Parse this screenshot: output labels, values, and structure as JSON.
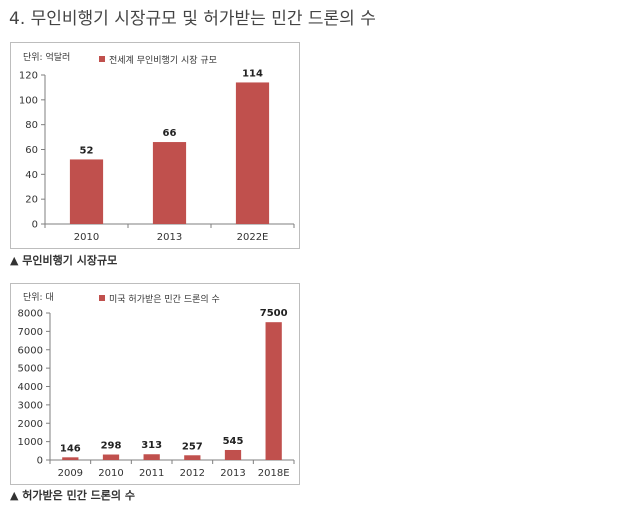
{
  "heading": "4.  무인비행기 시장규모 및 허가받는 민간 드론의 수",
  "colors": {
    "bar": "#c0504d",
    "axis": "#7f7f7f"
  },
  "chart_data": [
    {
      "type": "bar",
      "unit_label": "단위: 억달러",
      "legend": "전세계 무인비행기 시장 규모",
      "categories": [
        "2010",
        "2013",
        "2022E"
      ],
      "values": [
        52,
        66,
        114
      ],
      "value_labels": [
        "52",
        "66",
        "114"
      ],
      "y_ticks": [
        "0",
        "20",
        "40",
        "60",
        "80",
        "100",
        "120"
      ],
      "ylim": [
        0,
        120
      ],
      "grid": false,
      "caption": "▲ 무인비행기 시장규모"
    },
    {
      "type": "bar",
      "unit_label": "단위: 대",
      "legend": "미국 허가받은 민간 드론의 수",
      "categories": [
        "2009",
        "2010",
        "2011",
        "2012",
        "2013",
        "2018E"
      ],
      "values": [
        146,
        298,
        313,
        257,
        545,
        7500
      ],
      "value_labels": [
        "146",
        "298",
        "313",
        "257",
        "545",
        "7500"
      ],
      "y_ticks": [
        "0",
        "1000",
        "2000",
        "3000",
        "4000",
        "5000",
        "6000",
        "7000",
        "8000"
      ],
      "ylim": [
        0,
        8000
      ],
      "grid": false,
      "caption": "▲ 허가받은 민간 드론의 수"
    }
  ]
}
